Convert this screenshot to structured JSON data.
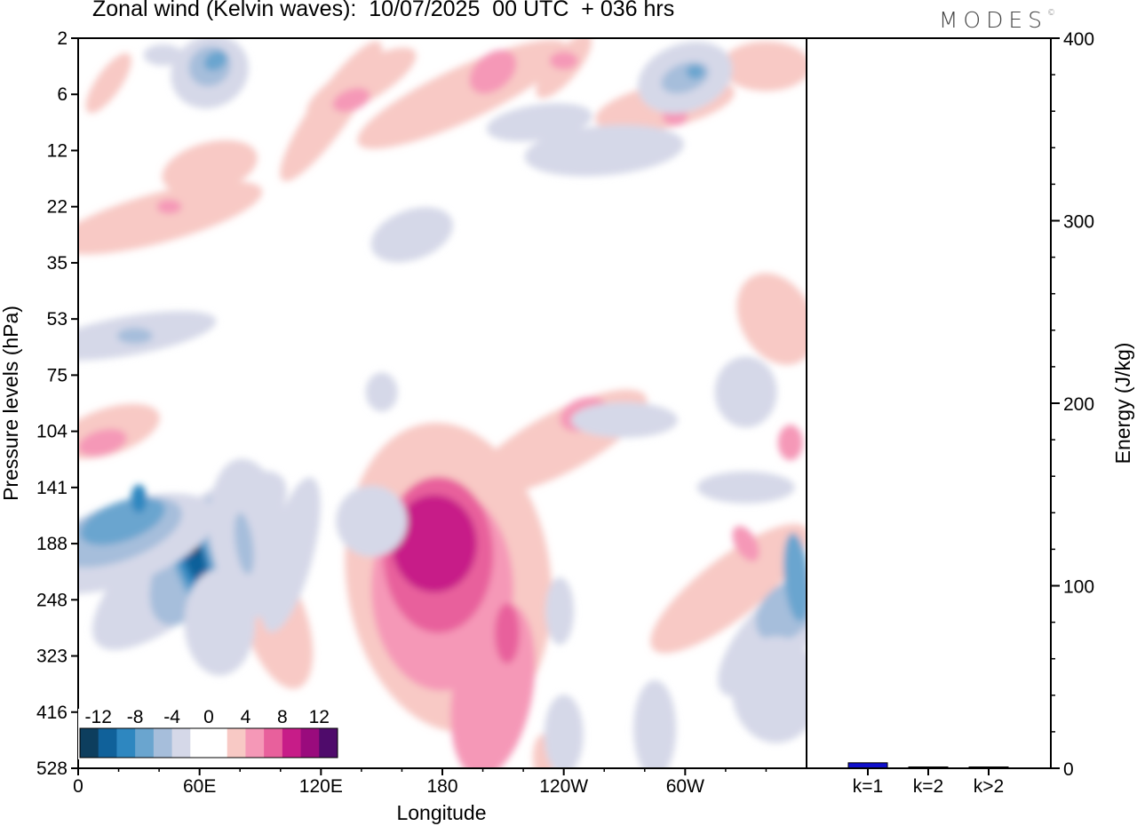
{
  "header": {
    "title": "Zonal wind (Kelvin waves):  10/07/2025  00 UTC  + 036 hrs",
    "brand": "MODES",
    "brand_mark": "©"
  },
  "colors": {
    "neg_strong": "#0d3e5e",
    "neg_4": "#10619a",
    "neg_3": "#2e87c0",
    "neg_2": "#6aa5cf",
    "neg_1": "#a6bedb",
    "neg_0": "#d5d8e8",
    "pos_0": "#f8c9c5",
    "pos_1": "#f598b7",
    "pos_2": "#e8609c",
    "pos_3": "#c71c88",
    "pos_4": "#9a0b7d",
    "pos_strong": "#4f0b6b",
    "energy_bar": "#1010cc"
  },
  "chart_data": [
    {
      "type": "heatmap",
      "title": "Zonal wind (Kelvin waves):  10/07/2025  00 UTC  + 036 hrs",
      "xlabel": "Longitude",
      "ylabel": "Pressure levels (hPa)",
      "x_ticks": [
        "0",
        "60E",
        "120E",
        "180",
        "120W",
        "60W"
      ],
      "x_range_deg_east": [
        0,
        360
      ],
      "y_ticks": [
        "2",
        "6",
        "12",
        "22",
        "35",
        "53",
        "75",
        "104",
        "141",
        "188",
        "248",
        "323",
        "416",
        "528"
      ],
      "y_axis_order": "top-to-bottom",
      "colorbar": {
        "labels": [
          "-12",
          "-8",
          "-4",
          "0",
          "4",
          "8",
          "12"
        ],
        "levels": [
          -14,
          -12,
          -10,
          -8,
          -6,
          -4,
          -2,
          2,
          4,
          6,
          8,
          10,
          12,
          14
        ]
      },
      "features": [
        {
          "sign": "positive",
          "lon": 175,
          "level": 141,
          "max": 12
        },
        {
          "sign": "negative",
          "lon": 58,
          "level": 141,
          "min": -14
        },
        {
          "sign": "negative",
          "lon": 30,
          "level": 141,
          "min": -8
        },
        {
          "sign": "negative",
          "lon": 355,
          "level": 188,
          "min": -8
        },
        {
          "sign": "negative",
          "lon": 300,
          "level": 5,
          "min": -6
        },
        {
          "sign": "negative",
          "lon": 70,
          "level": 4,
          "min": -6
        },
        {
          "sign": "positive",
          "lon": 250,
          "level": 75,
          "max": 6
        }
      ],
      "grid": false
    },
    {
      "type": "bar",
      "categories": [
        "k=1",
        "k=2",
        "k>2"
      ],
      "values": [
        3,
        0.4,
        0.6
      ],
      "ylabel": "Energy (J/kg)",
      "y_ticks": [
        "0",
        "100",
        "200",
        "300",
        "400"
      ],
      "ylim": [
        0,
        400
      ]
    }
  ]
}
